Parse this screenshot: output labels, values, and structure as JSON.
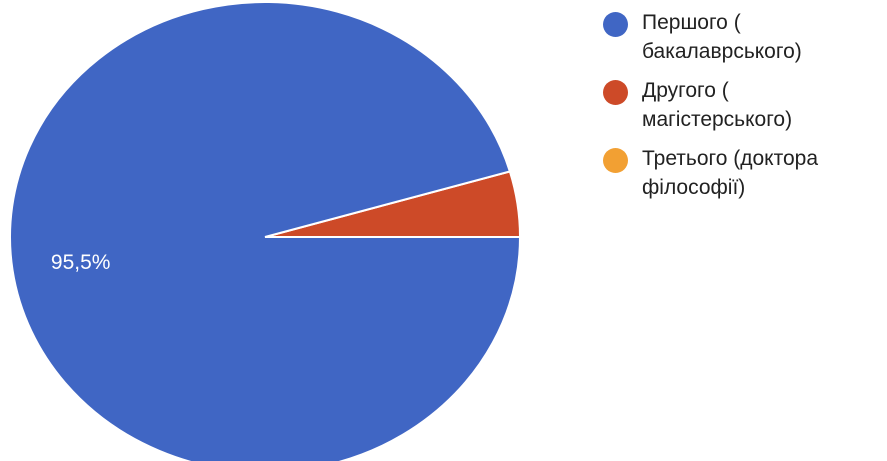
{
  "chart_data": {
    "type": "pie",
    "title": "",
    "categories": [
      "Першого (\nбакалаврського)",
      "Другого (\nмагістерського)",
      "Третього (доктора\nфілософії)"
    ],
    "values": [
      95.5,
      4.5,
      0
    ],
    "colors": [
      "#4066c4",
      "#cd4a28",
      "#f2a033"
    ],
    "data_labels": [
      "95,5%",
      "",
      ""
    ],
    "legend_position": "right"
  }
}
